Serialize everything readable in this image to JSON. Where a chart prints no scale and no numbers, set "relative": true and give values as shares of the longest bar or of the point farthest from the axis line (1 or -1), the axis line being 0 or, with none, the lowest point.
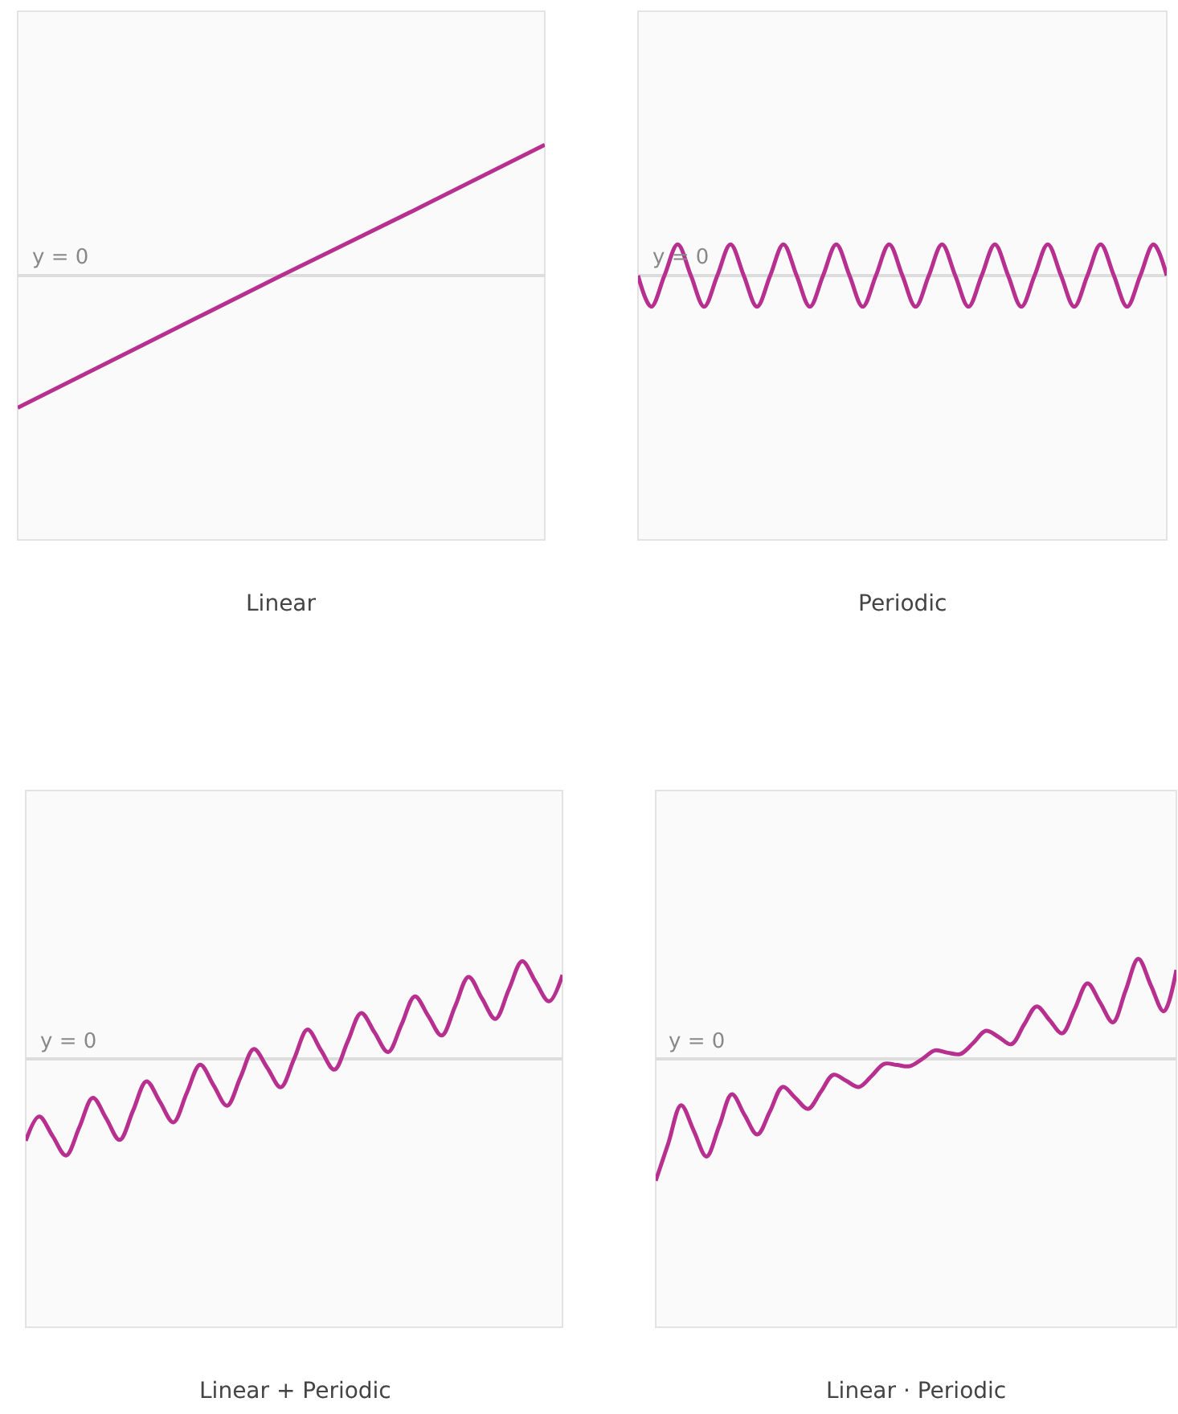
{
  "chart_data": [
    {
      "type": "line",
      "title": "Linear",
      "categories": [
        null,
        null,
        null,
        null,
        null
      ],
      "values": [
        -1.0,
        -0.5,
        0.0,
        0.49,
        0.99
      ],
      "color": "#b8308f",
      "relative": true,
      "annotations": [
        "y = 0"
      ]
    },
    {
      "type": "line",
      "title": "Periodic",
      "categories": [
        null,
        null,
        null,
        null,
        null,
        null,
        null,
        null,
        null,
        null,
        null,
        null,
        null,
        null,
        null,
        null,
        null,
        null,
        null,
        null,
        null,
        null,
        null,
        null,
        null,
        null,
        null,
        null,
        null,
        null,
        null,
        null,
        null,
        null,
        null,
        null,
        null,
        null,
        null,
        null,
        null
      ],
      "values": [
        0,
        -1,
        0,
        1,
        0,
        -1,
        0,
        1,
        0,
        -1,
        0,
        1,
        0,
        -1,
        0,
        1,
        0,
        -1,
        0,
        1,
        0,
        -1,
        0,
        1,
        0,
        -1,
        0,
        1,
        0,
        -1,
        0,
        1,
        0,
        -1,
        0,
        1,
        0,
        -1,
        0,
        1,
        0
      ],
      "color": "#b8308f",
      "relative": true,
      "annotations": [
        "y = 0"
      ]
    },
    {
      "type": "line",
      "title": "Linear + Periodic",
      "categories": [
        null,
        null,
        null,
        null,
        null,
        null,
        null,
        null,
        null,
        null,
        null,
        null,
        null,
        null,
        null,
        null,
        null,
        null,
        null,
        null,
        null,
        null,
        null,
        null,
        null,
        null,
        null,
        null,
        null,
        null,
        null,
        null,
        null,
        null,
        null,
        null,
        null,
        null,
        null,
        null,
        null
      ],
      "values": [
        -0.84,
        -0.59,
        -0.79,
        -0.99,
        -0.7,
        -0.4,
        -0.61,
        -0.83,
        -0.53,
        -0.23,
        -0.44,
        -0.65,
        -0.35,
        -0.06,
        -0.27,
        -0.48,
        -0.19,
        0.1,
        -0.09,
        -0.29,
        0.0,
        0.3,
        0.09,
        -0.11,
        0.18,
        0.47,
        0.27,
        0.07,
        0.35,
        0.64,
        0.44,
        0.24,
        0.54,
        0.84,
        0.62,
        0.41,
        0.71,
        1.0,
        0.79,
        0.59,
        0.86
      ],
      "color": "#b8308f",
      "relative": true,
      "annotations": [
        "y = 0"
      ]
    },
    {
      "type": "line",
      "title": "Linear · Periodic",
      "categories": [
        null,
        null,
        null,
        null,
        null,
        null,
        null,
        null,
        null,
        null,
        null,
        null,
        null,
        null,
        null,
        null,
        null,
        null,
        null,
        null,
        null,
        null,
        null,
        null,
        null,
        null,
        null,
        null,
        null,
        null,
        null,
        null,
        null,
        null,
        null,
        null,
        null,
        null,
        null,
        null,
        null,
        null
      ],
      "values": [
        -1.0,
        -0.69,
        -0.38,
        -0.59,
        -0.8,
        -0.55,
        -0.29,
        -0.46,
        -0.62,
        -0.43,
        -0.23,
        -0.32,
        -0.41,
        -0.27,
        -0.13,
        -0.18,
        -0.23,
        -0.14,
        -0.04,
        -0.05,
        -0.06,
        0.0,
        0.07,
        0.05,
        0.04,
        0.13,
        0.23,
        0.18,
        0.12,
        0.28,
        0.43,
        0.32,
        0.21,
        0.41,
        0.62,
        0.46,
        0.3,
        0.56,
        0.82,
        0.6,
        0.39,
        0.73
      ],
      "color": "#b8308f",
      "relative": true,
      "annotations": [
        "y = 0"
      ]
    }
  ]
}
